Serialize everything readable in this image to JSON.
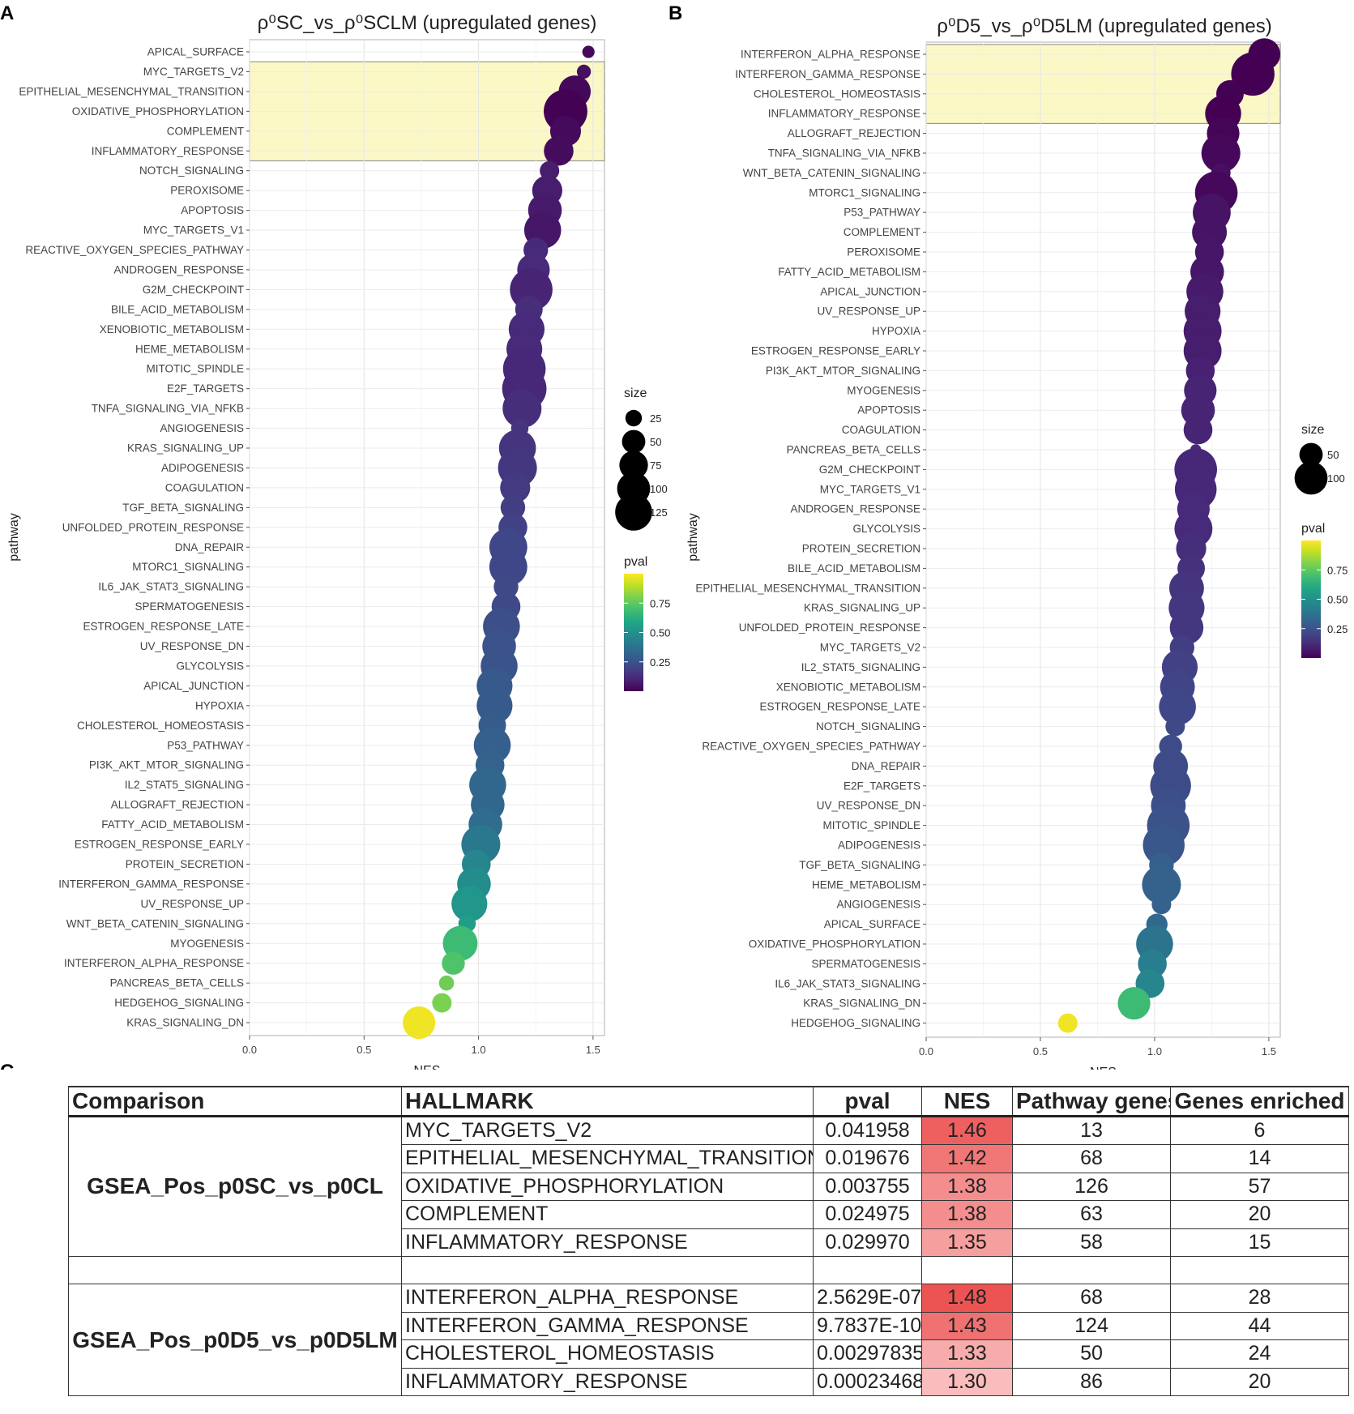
{
  "panel_labels": {
    "a": "A",
    "b": "B",
    "c": "C"
  },
  "colors": {
    "viridis": [
      "#440154",
      "#482475",
      "#414487",
      "#355f8d",
      "#2a788e",
      "#21918c",
      "#22a884",
      "#44bf70",
      "#7ad151",
      "#bddf26",
      "#fde725"
    ],
    "highlight": "#fbf8c6",
    "nes_fill": "#f08080"
  },
  "legend": {
    "size_title": "size",
    "pval_title": "pval",
    "a_sizes": [
      25,
      50,
      75,
      100,
      125
    ],
    "b_sizes": [
      50,
      100
    ],
    "pval_ticks": [
      0.75,
      0.5,
      0.25
    ],
    "pval_tick_labels": [
      "0.75",
      "0.50",
      "0.25"
    ]
  },
  "chart_data": [
    {
      "type": "scatter",
      "title": "ρ⁰SC_vs_ρ⁰SCLM (upregulated genes)",
      "xlabel": "NES",
      "ylabel": "pathway",
      "xlim": [
        0,
        1.55
      ],
      "xticks": [
        0.0,
        0.5,
        1.0,
        1.5
      ],
      "xtick_labels": [
        "0.0",
        "0.5",
        "1.0",
        "1.5"
      ],
      "highlighted": [
        "MYC_TARGETS_V2",
        "EPITHELIAL_MESENCHYMAL_TRANSITION",
        "OXIDATIVE_PHOSPHORYLATION",
        "COMPLEMENT",
        "INFLAMMATORY_RESPONSE"
      ],
      "points": [
        {
          "pathway": "APICAL_SURFACE",
          "nes": 1.48,
          "pval": 0.02,
          "size": 10
        },
        {
          "pathway": "MYC_TARGETS_V2",
          "nes": 1.46,
          "pval": 0.04,
          "size": 13
        },
        {
          "pathway": "EPITHELIAL_MESENCHYMAL_TRANSITION",
          "nes": 1.42,
          "pval": 0.02,
          "size": 68
        },
        {
          "pathway": "OXIDATIVE_PHOSPHORYLATION",
          "nes": 1.38,
          "pval": 0.004,
          "size": 126
        },
        {
          "pathway": "COMPLEMENT",
          "nes": 1.38,
          "pval": 0.025,
          "size": 63
        },
        {
          "pathway": "INFLAMMATORY_RESPONSE",
          "nes": 1.35,
          "pval": 0.03,
          "size": 58
        },
        {
          "pathway": "NOTCH_SIGNALING",
          "nes": 1.31,
          "pval": 0.08,
          "size": 25
        },
        {
          "pathway": "PEROXISOME",
          "nes": 1.3,
          "pval": 0.08,
          "size": 60
        },
        {
          "pathway": "APOPTOSIS",
          "nes": 1.29,
          "pval": 0.07,
          "size": 75
        },
        {
          "pathway": "MYC_TARGETS_V1",
          "nes": 1.28,
          "pval": 0.06,
          "size": 90
        },
        {
          "pathway": "REACTIVE_OXYGEN_SPECIES_PATHWAY",
          "nes": 1.25,
          "pval": 0.12,
          "size": 40
        },
        {
          "pathway": "ANDROGEN_RESPONSE",
          "nes": 1.24,
          "pval": 0.12,
          "size": 70
        },
        {
          "pathway": "G2M_CHECKPOINT",
          "nes": 1.23,
          "pval": 0.1,
          "size": 120
        },
        {
          "pathway": "BILE_ACID_METABOLISM",
          "nes": 1.22,
          "pval": 0.13,
          "size": 50
        },
        {
          "pathway": "XENOBIOTIC_METABOLISM",
          "nes": 1.21,
          "pval": 0.12,
          "size": 85
        },
        {
          "pathway": "HEME_METABOLISM",
          "nes": 1.2,
          "pval": 0.12,
          "size": 85
        },
        {
          "pathway": "MITOTIC_SPINDLE",
          "nes": 1.2,
          "pval": 0.11,
          "size": 120
        },
        {
          "pathway": "E2F_TARGETS",
          "nes": 1.2,
          "pval": 0.11,
          "size": 130
        },
        {
          "pathway": "TNFA_SIGNALING_VIA_NFKB",
          "nes": 1.19,
          "pval": 0.13,
          "size": 100
        },
        {
          "pathway": "ANGIOGENESIS",
          "nes": 1.18,
          "pval": 0.15,
          "size": 20
        },
        {
          "pathway": "KRAS_SIGNALING_UP",
          "nes": 1.17,
          "pval": 0.15,
          "size": 90
        },
        {
          "pathway": "ADIPOGENESIS",
          "nes": 1.17,
          "pval": 0.16,
          "size": 100
        },
        {
          "pathway": "COAGULATION",
          "nes": 1.16,
          "pval": 0.17,
          "size": 60
        },
        {
          "pathway": "TGF_BETA_SIGNALING",
          "nes": 1.15,
          "pval": 0.18,
          "size": 40
        },
        {
          "pathway": "UNFOLDED_PROTEIN_RESPONSE",
          "nes": 1.15,
          "pval": 0.19,
          "size": 55
        },
        {
          "pathway": "DNA_REPAIR",
          "nes": 1.13,
          "pval": 0.21,
          "size": 95
        },
        {
          "pathway": "MTORC1_SIGNALING",
          "nes": 1.13,
          "pval": 0.21,
          "size": 95
        },
        {
          "pathway": "IL6_JAK_STAT3_SIGNALING",
          "nes": 1.12,
          "pval": 0.22,
          "size": 40
        },
        {
          "pathway": "SPERMATOGENESIS",
          "nes": 1.12,
          "pval": 0.22,
          "size": 55
        },
        {
          "pathway": "ESTROGEN_RESPONSE_LATE",
          "nes": 1.1,
          "pval": 0.24,
          "size": 90
        },
        {
          "pathway": "UV_RESPONSE_DN",
          "nes": 1.09,
          "pval": 0.25,
          "size": 75
        },
        {
          "pathway": "GLYCOLYSIS",
          "nes": 1.09,
          "pval": 0.26,
          "size": 90
        },
        {
          "pathway": "APICAL_JUNCTION",
          "nes": 1.07,
          "pval": 0.28,
          "size": 85
        },
        {
          "pathway": "HYPOXIA",
          "nes": 1.07,
          "pval": 0.28,
          "size": 85
        },
        {
          "pathway": "CHOLESTEROL_HOMEOSTASIS",
          "nes": 1.06,
          "pval": 0.29,
          "size": 50
        },
        {
          "pathway": "P53_PATHWAY",
          "nes": 1.06,
          "pval": 0.3,
          "size": 90
        },
        {
          "pathway": "PI3K_AKT_MTOR_SIGNALING",
          "nes": 1.05,
          "pval": 0.31,
          "size": 55
        },
        {
          "pathway": "IL2_STAT5_SIGNALING",
          "nes": 1.04,
          "pval": 0.33,
          "size": 90
        },
        {
          "pathway": "ALLOGRAFT_REJECTION",
          "nes": 1.04,
          "pval": 0.33,
          "size": 75
        },
        {
          "pathway": "FATTY_ACID_METABOLISM",
          "nes": 1.03,
          "pval": 0.35,
          "size": 75
        },
        {
          "pathway": "ESTROGEN_RESPONSE_EARLY",
          "nes": 1.01,
          "pval": 0.4,
          "size": 100
        },
        {
          "pathway": "PROTEIN_SECRETION",
          "nes": 0.99,
          "pval": 0.45,
          "size": 55
        },
        {
          "pathway": "INTERFERON_GAMMA_RESPONSE",
          "nes": 0.98,
          "pval": 0.48,
          "size": 75
        },
        {
          "pathway": "UV_RESPONSE_UP",
          "nes": 0.96,
          "pval": 0.52,
          "size": 85
        },
        {
          "pathway": "WNT_BETA_CATENIN_SIGNALING",
          "nes": 0.95,
          "pval": 0.55,
          "size": 20
        },
        {
          "pathway": "MYOGENESIS",
          "nes": 0.92,
          "pval": 0.68,
          "size": 80
        },
        {
          "pathway": "INTERFERON_ALPHA_RESPONSE",
          "nes": 0.89,
          "pval": 0.72,
          "size": 35
        },
        {
          "pathway": "PANCREAS_BETA_CELLS",
          "nes": 0.86,
          "pval": 0.78,
          "size": 15
        },
        {
          "pathway": "HEDGEHOG_SIGNALING",
          "nes": 0.84,
          "pval": 0.8,
          "size": 25
        },
        {
          "pathway": "KRAS_SIGNALING_DN",
          "nes": 0.74,
          "pval": 0.98,
          "size": 70
        }
      ]
    },
    {
      "type": "scatter",
      "title": "ρ⁰D5_vs_ρ⁰D5LM (upregulated genes)",
      "xlabel": "NES",
      "ylabel": "pathway",
      "xlim": [
        0,
        1.55
      ],
      "xticks": [
        0.0,
        0.5,
        1.0,
        1.5
      ],
      "xtick_labels": [
        "0.0",
        "0.5",
        "1.0",
        "1.5"
      ],
      "highlighted": [
        "INTERFERON_ALPHA_RESPONSE",
        "INTERFERON_GAMMA_RESPONSE",
        "CHOLESTEROL_HOMEOSTASIS",
        "INFLAMMATORY_RESPONSE"
      ],
      "points": [
        {
          "pathway": "INTERFERON_ALPHA_RESPONSE",
          "nes": 1.48,
          "pval": 0.0,
          "size": 68
        },
        {
          "pathway": "INTERFERON_GAMMA_RESPONSE",
          "nes": 1.43,
          "pval": 0.0,
          "size": 124
        },
        {
          "pathway": "CHOLESTEROL_HOMEOSTASIS",
          "nes": 1.33,
          "pval": 0.003,
          "size": 50
        },
        {
          "pathway": "INFLAMMATORY_RESPONSE",
          "nes": 1.3,
          "pval": 0.0002,
          "size": 86
        },
        {
          "pathway": "ALLOGRAFT_REJECTION",
          "nes": 1.3,
          "pval": 0.01,
          "size": 70
        },
        {
          "pathway": "TNFA_SIGNALING_VIA_NFKB",
          "nes": 1.29,
          "pval": 0.02,
          "size": 100
        },
        {
          "pathway": "WNT_BETA_CATENIN_SIGNALING",
          "nes": 1.29,
          "pval": 0.04,
          "size": 25
        },
        {
          "pathway": "MTORC1_SIGNALING",
          "nes": 1.27,
          "pval": 0.02,
          "size": 120
        },
        {
          "pathway": "P53_PATHWAY",
          "nes": 1.25,
          "pval": 0.05,
          "size": 95
        },
        {
          "pathway": "COMPLEMENT",
          "nes": 1.24,
          "pval": 0.05,
          "size": 80
        },
        {
          "pathway": "PEROXISOME",
          "nes": 1.24,
          "pval": 0.06,
          "size": 55
        },
        {
          "pathway": "FATTY_ACID_METABOLISM",
          "nes": 1.23,
          "pval": 0.06,
          "size": 75
        },
        {
          "pathway": "APICAL_JUNCTION",
          "nes": 1.22,
          "pval": 0.07,
          "size": 90
        },
        {
          "pathway": "UV_RESPONSE_UP",
          "nes": 1.21,
          "pval": 0.08,
          "size": 85
        },
        {
          "pathway": "HYPOXIA",
          "nes": 1.21,
          "pval": 0.08,
          "size": 95
        },
        {
          "pathway": "ESTROGEN_RESPONSE_EARLY",
          "nes": 1.21,
          "pval": 0.08,
          "size": 95
        },
        {
          "pathway": "PI3K_AKT_MTOR_SIGNALING",
          "nes": 1.2,
          "pval": 0.09,
          "size": 55
        },
        {
          "pathway": "MYOGENESIS",
          "nes": 1.2,
          "pval": 0.1,
          "size": 70
        },
        {
          "pathway": "APOPTOSIS",
          "nes": 1.19,
          "pval": 0.1,
          "size": 75
        },
        {
          "pathway": "COAGULATION",
          "nes": 1.19,
          "pval": 0.1,
          "size": 55
        },
        {
          "pathway": "PANCREAS_BETA_CELLS",
          "nes": 1.18,
          "pval": 0.12,
          "size": 8
        },
        {
          "pathway": "G2M_CHECKPOINT",
          "nes": 1.18,
          "pval": 0.11,
          "size": 120
        },
        {
          "pathway": "MYC_TARGETS_V1",
          "nes": 1.18,
          "pval": 0.11,
          "size": 115
        },
        {
          "pathway": "ANDROGEN_RESPONSE",
          "nes": 1.17,
          "pval": 0.12,
          "size": 70
        },
        {
          "pathway": "GLYCOLYSIS",
          "nes": 1.17,
          "pval": 0.12,
          "size": 95
        },
        {
          "pathway": "PROTEIN_SECRETION",
          "nes": 1.16,
          "pval": 0.13,
          "size": 60
        },
        {
          "pathway": "BILE_ACID_METABOLISM",
          "nes": 1.16,
          "pval": 0.14,
          "size": 50
        },
        {
          "pathway": "EPITHELIAL_MESENCHYMAL_TRANSITION",
          "nes": 1.14,
          "pval": 0.15,
          "size": 80
        },
        {
          "pathway": "KRAS_SIGNALING_UP",
          "nes": 1.14,
          "pval": 0.16,
          "size": 85
        },
        {
          "pathway": "UNFOLDED_PROTEIN_RESPONSE",
          "nes": 1.14,
          "pval": 0.16,
          "size": 75
        },
        {
          "pathway": "MYC_TARGETS_V2",
          "nes": 1.12,
          "pval": 0.18,
          "size": 40
        },
        {
          "pathway": "IL2_STAT5_SIGNALING",
          "nes": 1.11,
          "pval": 0.19,
          "size": 85
        },
        {
          "pathway": "XENOBIOTIC_METABOLISM",
          "nes": 1.1,
          "pval": 0.2,
          "size": 80
        },
        {
          "pathway": "ESTROGEN_RESPONSE_LATE",
          "nes": 1.1,
          "pval": 0.21,
          "size": 90
        },
        {
          "pathway": "NOTCH_SIGNALING",
          "nes": 1.09,
          "pval": 0.22,
          "size": 25
        },
        {
          "pathway": "REACTIVE_OXYGEN_SPECIES_PATHWAY",
          "nes": 1.07,
          "pval": 0.23,
          "size": 35
        },
        {
          "pathway": "DNA_REPAIR",
          "nes": 1.07,
          "pval": 0.23,
          "size": 80
        },
        {
          "pathway": "E2F_TARGETS",
          "nes": 1.07,
          "pval": 0.23,
          "size": 110
        },
        {
          "pathway": "UV_RESPONSE_DN",
          "nes": 1.06,
          "pval": 0.24,
          "size": 80
        },
        {
          "pathway": "MITOTIC_SPINDLE",
          "nes": 1.06,
          "pval": 0.25,
          "size": 120
        },
        {
          "pathway": "ADIPOGENESIS",
          "nes": 1.04,
          "pval": 0.27,
          "size": 115
        },
        {
          "pathway": "TGF_BETA_SIGNALING",
          "nes": 1.03,
          "pval": 0.3,
          "size": 40
        },
        {
          "pathway": "HEME_METABOLISM",
          "nes": 1.03,
          "pval": 0.31,
          "size": 100
        },
        {
          "pathway": "ANGIOGENESIS",
          "nes": 1.03,
          "pval": 0.31,
          "size": 25
        },
        {
          "pathway": "APICAL_SURFACE",
          "nes": 1.01,
          "pval": 0.34,
          "size": 30
        },
        {
          "pathway": "OXIDATIVE_PHOSPHORYLATION",
          "nes": 1.0,
          "pval": 0.38,
          "size": 90
        },
        {
          "pathway": "SPERMATOGENESIS",
          "nes": 0.99,
          "pval": 0.42,
          "size": 55
        },
        {
          "pathway": "IL6_JAK_STAT3_SIGNALING",
          "nes": 0.98,
          "pval": 0.45,
          "size": 55
        },
        {
          "pathway": "KRAS_SIGNALING_DN",
          "nes": 0.91,
          "pval": 0.68,
          "size": 70
        },
        {
          "pathway": "HEDGEHOG_SIGNALING",
          "nes": 0.62,
          "pval": 0.98,
          "size": 25
        }
      ]
    },
    {
      "type": "table",
      "headers": [
        "Comparison",
        "HALLMARK",
        "pval",
        "NES",
        "Pathway genes",
        "Genes enriched"
      ],
      "groups": [
        {
          "comparison": "GSEA_Pos_p0SC_vs_p0CL",
          "rows": [
            {
              "hallmark": "MYC_TARGETS_V2",
              "pval": "0.041958",
              "nes": "1.46",
              "pathway_genes": "13",
              "genes_enriched": "6"
            },
            {
              "hallmark": "EPITHELIAL_MESENCHYMAL_TRANSITION",
              "pval": "0.019676",
              "nes": "1.42",
              "pathway_genes": "68",
              "genes_enriched": "14"
            },
            {
              "hallmark": "OXIDATIVE_PHOSPHORYLATION",
              "pval": "0.003755",
              "nes": "1.38",
              "pathway_genes": "126",
              "genes_enriched": "57"
            },
            {
              "hallmark": "COMPLEMENT",
              "pval": "0.024975",
              "nes": "1.38",
              "pathway_genes": "63",
              "genes_enriched": "20"
            },
            {
              "hallmark": "INFLAMMATORY_RESPONSE",
              "pval": "0.029970",
              "nes": "1.35",
              "pathway_genes": "58",
              "genes_enriched": "15"
            }
          ]
        },
        {
          "comparison": "GSEA_Pos_p0D5_vs_p0D5LM",
          "rows": [
            {
              "hallmark": "INTERFERON_ALPHA_RESPONSE",
              "pval": "2.5629E-07",
              "nes": "1.48",
              "pathway_genes": "68",
              "genes_enriched": "28"
            },
            {
              "hallmark": "INTERFERON_GAMMA_RESPONSE",
              "pval": "9.7837E-10",
              "nes": "1.43",
              "pathway_genes": "124",
              "genes_enriched": "44"
            },
            {
              "hallmark": "CHOLESTEROL_HOMEOSTASIS",
              "pval": "0.00297835",
              "nes": "1.33",
              "pathway_genes": "50",
              "genes_enriched": "24"
            },
            {
              "hallmark": "INFLAMMATORY_RESPONSE",
              "pval": "0.00023468",
              "nes": "1.30",
              "pathway_genes": "86",
              "genes_enriched": "20"
            }
          ]
        }
      ]
    }
  ]
}
